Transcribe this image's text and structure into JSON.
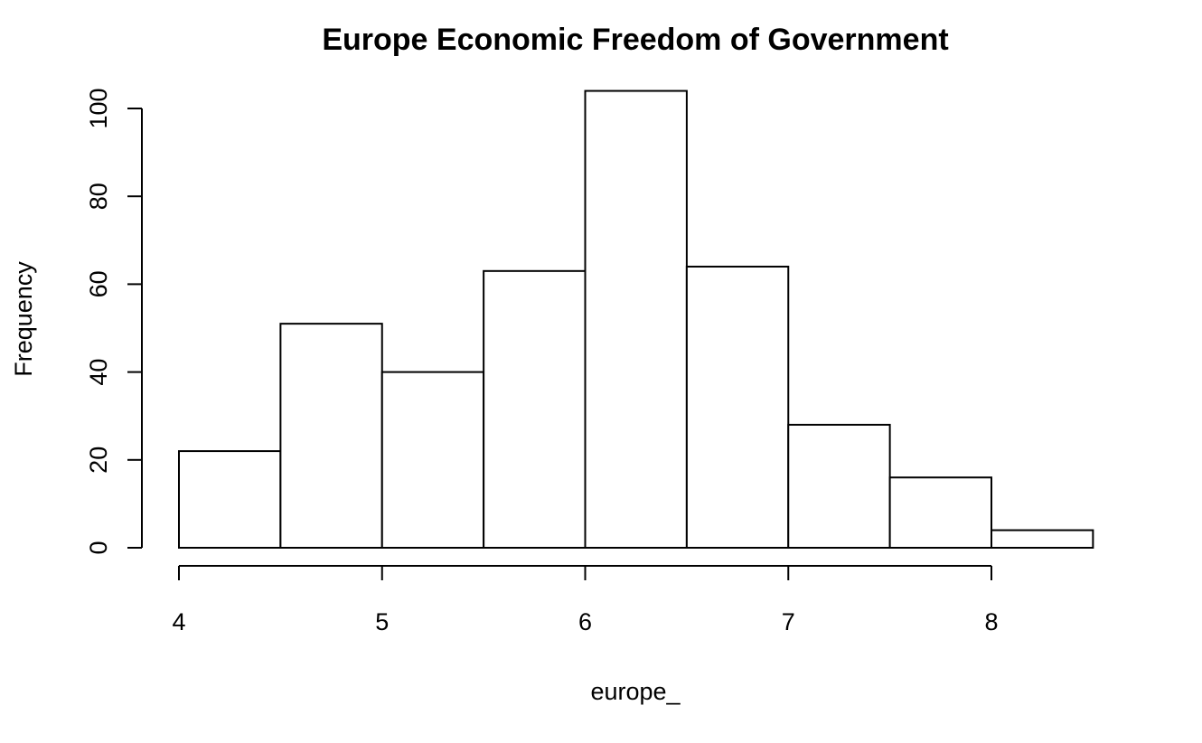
{
  "chart_data": {
    "type": "bar",
    "subtype": "histogram",
    "title": "Europe Economic Freedom of Government",
    "xlabel": "europe_",
    "ylabel": "Frequency",
    "bins": [
      {
        "start": 4.0,
        "end": 4.5,
        "count": 22
      },
      {
        "start": 4.5,
        "end": 5.0,
        "count": 51
      },
      {
        "start": 5.0,
        "end": 5.5,
        "count": 40
      },
      {
        "start": 5.5,
        "end": 6.0,
        "count": 63
      },
      {
        "start": 6.0,
        "end": 6.5,
        "count": 104
      },
      {
        "start": 6.5,
        "end": 7.0,
        "count": 64
      },
      {
        "start": 7.0,
        "end": 7.5,
        "count": 28
      },
      {
        "start": 7.5,
        "end": 8.0,
        "count": 16
      },
      {
        "start": 8.0,
        "end": 8.5,
        "count": 4
      }
    ],
    "x_ticks": [
      4,
      5,
      6,
      7,
      8
    ],
    "y_ticks": [
      0,
      20,
      40,
      60,
      80,
      100
    ],
    "xlim": [
      4,
      8.5
    ],
    "ylim": [
      0,
      104
    ],
    "bar_fill": "#ffffff",
    "bar_stroke": "#000000",
    "grid": false,
    "legend": "none"
  }
}
